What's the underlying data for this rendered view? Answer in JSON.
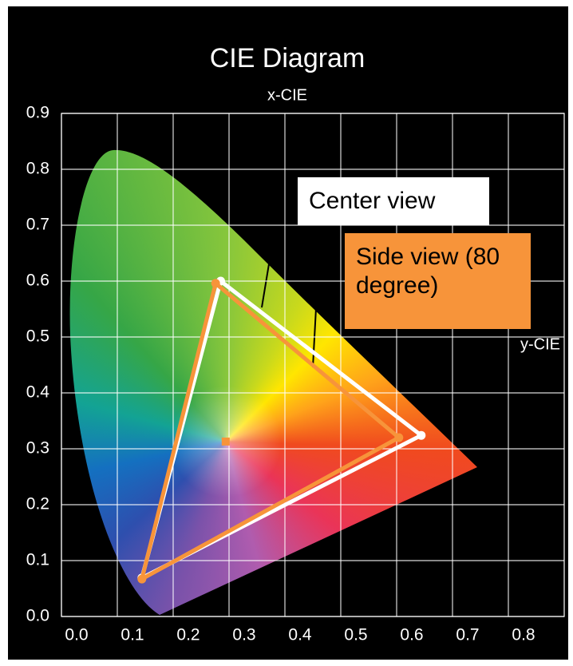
{
  "chart_data": {
    "type": "line",
    "title": "CIE Diagram",
    "x_label": "x-CIE",
    "y_label": "y-CIE",
    "xlim": [
      0,
      0.9
    ],
    "ylim": [
      0,
      0.9
    ],
    "xticks": [
      {
        "value": 0,
        "label": "0.0"
      },
      0.1,
      0.2,
      0.3,
      0.4,
      0.5,
      0.6,
      0.7,
      0.8
    ],
    "yticks": [
      {
        "value": 0,
        "label": "0.0"
      },
      0.1,
      0.2,
      0.3,
      0.4,
      0.5,
      0.6,
      0.7,
      0.8,
      0.9
    ],
    "grid": true,
    "series": [
      {
        "name": "Center view",
        "color": "#ffffff",
        "x": [
          0.285,
          0.644,
          0.144
        ],
        "y": [
          0.6,
          0.324,
          0.069
        ]
      },
      {
        "name": "Side view (80 degree)",
        "color": "#f7943a",
        "x": [
          0.276,
          0.604,
          0.144
        ],
        "y": [
          0.596,
          0.32,
          0.067
        ]
      }
    ],
    "white_point": {
      "x": 0.294,
      "y": 0.313
    }
  }
}
